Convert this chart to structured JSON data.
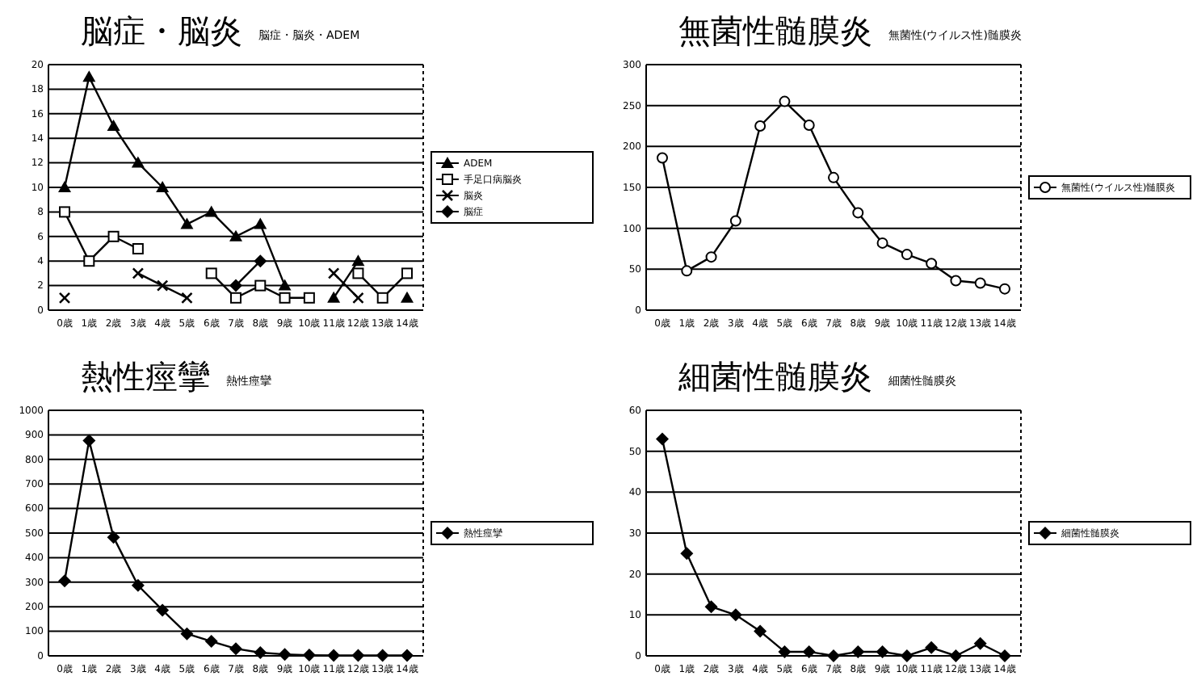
{
  "chart_data": [
    {
      "type": "line",
      "title": "脳症・脳炎",
      "subtitle": "脳症・脳炎・ADEM",
      "categories": [
        "0歳",
        "1歳",
        "2歳",
        "3歳",
        "4歳",
        "5歳",
        "6歳",
        "7歳",
        "8歳",
        "9歳",
        "10歳",
        "11歳",
        "12歳",
        "13歳",
        "14歳"
      ],
      "ylim": [
        0,
        20
      ],
      "yticks": [
        0,
        2,
        4,
        6,
        8,
        10,
        12,
        14,
        16,
        18,
        20
      ],
      "grid": "y",
      "legend": "right",
      "series": [
        {
          "name": "ADEM",
          "color": "#000000",
          "marker": "triangle",
          "values": [
            10,
            19,
            15,
            12,
            10,
            7,
            8,
            6,
            7,
            2,
            null,
            1,
            4,
            null,
            1
          ]
        },
        {
          "name": "手足口病脳炎",
          "color": "#000000",
          "marker": "square",
          "values": [
            8,
            4,
            6,
            5,
            null,
            null,
            3,
            1,
            2,
            1,
            1,
            null,
            3,
            1,
            3
          ]
        },
        {
          "name": "脳炎",
          "color": "#000000",
          "marker": "cross",
          "values": [
            1,
            null,
            null,
            3,
            2,
            1,
            null,
            null,
            null,
            null,
            null,
            3,
            1,
            null,
            null
          ]
        },
        {
          "name": "脳症",
          "color": "#000000",
          "marker": "diamond",
          "values": [
            null,
            null,
            null,
            null,
            null,
            null,
            null,
            2,
            4,
            null,
            null,
            null,
            null,
            null,
            null
          ]
        }
      ]
    },
    {
      "type": "line",
      "title": "無菌性髄膜炎",
      "subtitle": "無菌性(ウイルス性)髄膜炎",
      "categories": [
        "0歳",
        "1歳",
        "2歳",
        "3歳",
        "4歳",
        "5歳",
        "6歳",
        "7歳",
        "8歳",
        "9歳",
        "10歳",
        "11歳",
        "12歳",
        "13歳",
        "14歳"
      ],
      "ylim": [
        0,
        300
      ],
      "yticks": [
        0,
        50,
        100,
        150,
        200,
        250,
        300
      ],
      "grid": "y",
      "legend": "right",
      "series": [
        {
          "name": "無菌性(ウイルス性)髄膜炎",
          "color": "#000000",
          "marker": "circle",
          "values": [
            186,
            48,
            65,
            109,
            225,
            255,
            226,
            162,
            119,
            82,
            68,
            57,
            36,
            33,
            26
          ]
        }
      ]
    },
    {
      "type": "line",
      "title": "熱性痙攣",
      "subtitle": "熱性痙攣",
      "categories": [
        "0歳",
        "1歳",
        "2歳",
        "3歳",
        "4歳",
        "5歳",
        "6歳",
        "7歳",
        "8歳",
        "9歳",
        "10歳",
        "11歳",
        "12歳",
        "13歳",
        "14歳"
      ],
      "ylim": [
        0,
        1000
      ],
      "yticks": [
        0,
        100,
        200,
        300,
        400,
        500,
        600,
        700,
        800,
        900,
        1000
      ],
      "grid": "y",
      "legend": "right",
      "series": [
        {
          "name": "熱性痙攣",
          "color": "#000000",
          "marker": "diamond",
          "values": [
            305,
            877,
            483,
            287,
            186,
            90,
            59,
            29,
            13,
            6,
            3,
            2,
            2,
            2,
            2
          ]
        }
      ]
    },
    {
      "type": "line",
      "title": "細菌性髄膜炎",
      "subtitle": "細菌性髄膜炎",
      "categories": [
        "0歳",
        "1歳",
        "2歳",
        "3歳",
        "4歳",
        "5歳",
        "6歳",
        "7歳",
        "8歳",
        "9歳",
        "10歳",
        "11歳",
        "12歳",
        "13歳",
        "14歳"
      ],
      "ylim": [
        0,
        60
      ],
      "yticks": [
        0,
        10,
        20,
        30,
        40,
        50,
        60
      ],
      "grid": "y",
      "legend": "right",
      "series": [
        {
          "name": "細菌性髄膜炎",
          "color": "#000000",
          "marker": "diamond",
          "values": [
            53,
            25,
            12,
            10,
            6,
            1,
            1,
            0,
            1,
            1,
            0,
            2,
            0,
            3,
            0
          ]
        }
      ]
    }
  ]
}
